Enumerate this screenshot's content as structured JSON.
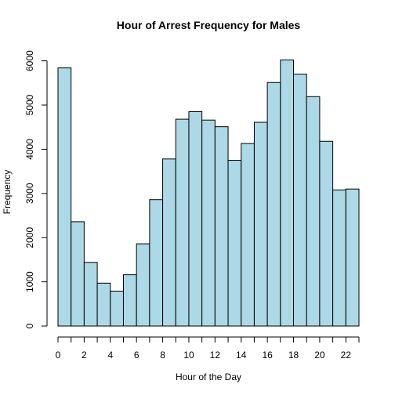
{
  "chart_data": {
    "type": "bar",
    "title": "Hour of Arrest Frequency for Males",
    "xlabel": "Hour of the Day",
    "ylabel": "Frequency",
    "bar_color": "#ADD8E6",
    "x": [
      0,
      1,
      2,
      3,
      4,
      5,
      6,
      7,
      8,
      9,
      10,
      11,
      12,
      13,
      14,
      15,
      16,
      17,
      18,
      19,
      20,
      21,
      22
    ],
    "values": [
      5840,
      2360,
      1440,
      970,
      790,
      1160,
      1860,
      2860,
      3780,
      4680,
      4850,
      4660,
      4510,
      3750,
      4130,
      4610,
      5510,
      6020,
      5700,
      5190,
      4180,
      3080,
      3100
    ],
    "xlim": [
      0,
      23
    ],
    "ylim": [
      0,
      6100
    ],
    "x_ticks": [
      0,
      1,
      2,
      3,
      4,
      5,
      6,
      7,
      8,
      9,
      10,
      11,
      12,
      13,
      14,
      15,
      16,
      17,
      18,
      19,
      20,
      21,
      22,
      23
    ],
    "x_tick_labels": [
      "0",
      "2",
      "4",
      "6",
      "8",
      "10",
      "12",
      "14",
      "16",
      "18",
      "20",
      "22"
    ],
    "y_ticks": [
      "0",
      "1000",
      "2000",
      "3000",
      "4000",
      "5000",
      "6000"
    ],
    "grid": false,
    "legend": "none"
  }
}
